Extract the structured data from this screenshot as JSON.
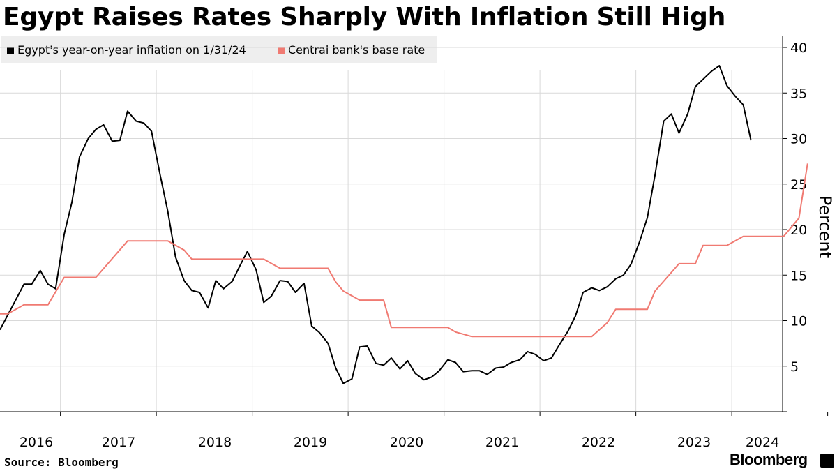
{
  "chart_data": {
    "type": "line",
    "title": "Egypt Raises Rates Sharply With Inflation Still High",
    "ylabel": "Percent",
    "ylim": [
      0,
      40
    ],
    "yticks": [
      5,
      10,
      15,
      20,
      25,
      30,
      35,
      40
    ],
    "xlim": [
      2015.5,
      2024.2
    ],
    "xticks": [
      {
        "label": "2016",
        "value": 2016
      },
      {
        "label": "2017",
        "value": 2017
      },
      {
        "label": "2018",
        "value": 2018
      },
      {
        "label": "2019",
        "value": 2019
      },
      {
        "label": "2020",
        "value": 2020
      },
      {
        "label": "2021",
        "value": 2021
      },
      {
        "label": "2022",
        "value": 2022
      },
      {
        "label": "2023",
        "value": 2023
      },
      {
        "label": "2024",
        "value": 2024
      }
    ],
    "grid": true,
    "legend_position": "top-left",
    "series": [
      {
        "name": "Egypt's year-on-year inflation on 1/31/24",
        "color": "#000000",
        "points": [
          [
            2015.5,
            9.0
          ],
          [
            2015.75,
            14.0
          ],
          [
            2015.83,
            14.0
          ],
          [
            2015.92,
            15.5
          ],
          [
            2016.0,
            14.0
          ],
          [
            2016.08,
            13.5
          ],
          [
            2016.17,
            19.5
          ],
          [
            2016.25,
            23.0
          ],
          [
            2016.33,
            28.0
          ],
          [
            2016.42,
            30.0
          ],
          [
            2016.5,
            31.0
          ],
          [
            2016.58,
            31.5
          ],
          [
            2016.67,
            29.7
          ],
          [
            2016.75,
            29.8
          ],
          [
            2016.83,
            33.0
          ],
          [
            2016.92,
            31.9
          ],
          [
            2017.0,
            31.7
          ],
          [
            2017.08,
            30.8
          ],
          [
            2017.17,
            26.0
          ],
          [
            2017.25,
            22.0
          ],
          [
            2017.33,
            17.0
          ],
          [
            2017.42,
            14.4
          ],
          [
            2017.5,
            13.3
          ],
          [
            2017.58,
            13.1
          ],
          [
            2017.67,
            11.4
          ],
          [
            2017.75,
            14.4
          ],
          [
            2017.83,
            13.5
          ],
          [
            2017.92,
            14.3
          ],
          [
            2018.0,
            16.0
          ],
          [
            2018.08,
            17.6
          ],
          [
            2018.17,
            15.6
          ],
          [
            2018.25,
            12.0
          ],
          [
            2018.33,
            12.7
          ],
          [
            2018.42,
            14.4
          ],
          [
            2018.5,
            14.3
          ],
          [
            2018.58,
            13.1
          ],
          [
            2018.67,
            14.1
          ],
          [
            2018.75,
            9.4
          ],
          [
            2018.83,
            8.7
          ],
          [
            2018.92,
            7.5
          ],
          [
            2019.0,
            4.8
          ],
          [
            2019.08,
            3.1
          ],
          [
            2019.17,
            3.6
          ],
          [
            2019.25,
            7.1
          ],
          [
            2019.33,
            7.2
          ],
          [
            2019.42,
            5.3
          ],
          [
            2019.5,
            5.1
          ],
          [
            2019.58,
            5.9
          ],
          [
            2019.67,
            4.7
          ],
          [
            2019.75,
            5.6
          ],
          [
            2019.83,
            4.2
          ],
          [
            2019.92,
            3.5
          ],
          [
            2020.0,
            3.8
          ],
          [
            2020.08,
            4.5
          ],
          [
            2020.17,
            5.7
          ],
          [
            2020.25,
            5.4
          ],
          [
            2020.33,
            4.4
          ],
          [
            2020.42,
            4.5
          ],
          [
            2020.5,
            4.5
          ],
          [
            2020.58,
            4.1
          ],
          [
            2020.67,
            4.8
          ],
          [
            2020.75,
            4.9
          ],
          [
            2020.83,
            5.4
          ],
          [
            2020.92,
            5.7
          ],
          [
            2021.0,
            6.6
          ],
          [
            2021.08,
            6.3
          ],
          [
            2021.17,
            5.6
          ],
          [
            2021.25,
            5.9
          ],
          [
            2021.33,
            7.3
          ],
          [
            2021.42,
            8.8
          ],
          [
            2021.5,
            10.5
          ],
          [
            2021.58,
            13.1
          ],
          [
            2021.67,
            13.6
          ],
          [
            2021.75,
            13.3
          ],
          [
            2021.83,
            13.7
          ],
          [
            2021.92,
            14.6
          ],
          [
            2022.0,
            15.0
          ],
          [
            2022.08,
            16.2
          ],
          [
            2022.17,
            18.7
          ],
          [
            2022.25,
            21.3
          ],
          [
            2022.33,
            26.0
          ],
          [
            2022.42,
            31.9
          ],
          [
            2022.5,
            32.7
          ],
          [
            2022.58,
            30.6
          ],
          [
            2022.67,
            32.7
          ],
          [
            2022.75,
            35.7
          ],
          [
            2022.83,
            36.5
          ],
          [
            2022.92,
            37.4
          ],
          [
            2023.0,
            38.0
          ],
          [
            2023.08,
            35.8
          ],
          [
            2023.17,
            34.6
          ],
          [
            2023.25,
            33.7
          ],
          [
            2023.33,
            29.8
          ]
        ]
      },
      {
        "name": "Central bank's base rate",
        "color": "#f07a72",
        "points": [
          [
            2015.5,
            10.75
          ],
          [
            2015.58,
            10.75
          ],
          [
            2015.75,
            11.75
          ],
          [
            2016.0,
            11.75
          ],
          [
            2016.17,
            14.75
          ],
          [
            2016.5,
            14.75
          ],
          [
            2016.83,
            18.75
          ],
          [
            2017.25,
            18.75
          ],
          [
            2017.42,
            17.75
          ],
          [
            2017.5,
            16.75
          ],
          [
            2018.25,
            16.75
          ],
          [
            2018.42,
            15.75
          ],
          [
            2018.92,
            15.75
          ],
          [
            2019.0,
            14.25
          ],
          [
            2019.08,
            13.25
          ],
          [
            2019.25,
            12.25
          ],
          [
            2019.5,
            12.25
          ],
          [
            2019.58,
            9.25
          ],
          [
            2020.17,
            9.25
          ],
          [
            2020.25,
            8.75
          ],
          [
            2020.42,
            8.25
          ],
          [
            2021.67,
            8.25
          ],
          [
            2021.83,
            9.75
          ],
          [
            2021.92,
            11.25
          ],
          [
            2022.25,
            11.25
          ],
          [
            2022.33,
            13.25
          ],
          [
            2022.58,
            16.25
          ],
          [
            2022.75,
            16.25
          ],
          [
            2022.83,
            18.25
          ],
          [
            2023.08,
            18.25
          ],
          [
            2023.25,
            19.25
          ],
          [
            2023.67,
            19.25
          ],
          [
            2023.83,
            21.25
          ],
          [
            2023.92,
            27.25
          ]
        ]
      }
    ]
  },
  "legend": [
    {
      "label": "Egypt's year-on-year inflation on 1/31/24",
      "color": "#000000"
    },
    {
      "label": "Central bank's base rate",
      "color": "#f07a72"
    }
  ],
  "source": "Source: Bloomberg",
  "brand": "Bloomberg",
  "grid_color": "#d9d9d9"
}
